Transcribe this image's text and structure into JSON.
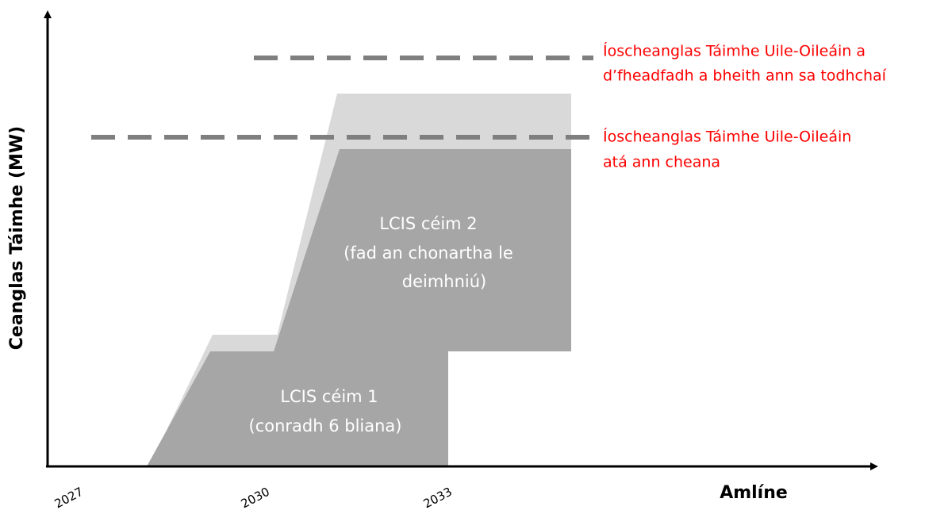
{
  "y_axis_label": "Ceanglas Táimhe (MW)",
  "x_axis_label": "Amlíne",
  "x_ticks": [
    "2027",
    "2030",
    "2033"
  ],
  "phases": [
    {
      "lines": [
        "LCIS céim 1",
        "(conradh 6 bliana)"
      ]
    },
    {
      "lines": [
        "LCIS céim 2",
        "(fad an chonartha le",
        "deimhniú)"
      ]
    }
  ],
  "annotations": [
    {
      "lines": [
        "Íoscheanglas Táimhe Uile-Oileáin a",
        "d’fheadfadh a bheith ann sa todhchaí"
      ]
    },
    {
      "lines": [
        "Íoscheanglas Táimhe Uile-Oileáin",
        "atá ann cheana"
      ]
    }
  ]
}
